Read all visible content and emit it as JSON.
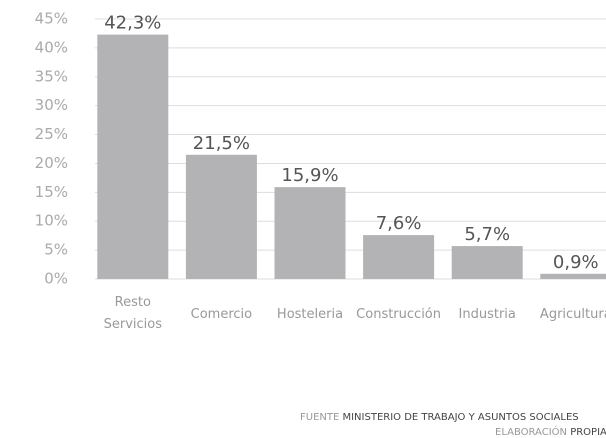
{
  "chart_data": {
    "type": "bar",
    "categories": [
      "Resto Servicios",
      "Comercio",
      "Hosteleria",
      "Construcción",
      "Industria",
      "Agricultura"
    ],
    "values": [
      42.3,
      21.5,
      15.9,
      7.6,
      5.7,
      0.9
    ],
    "value_labels": [
      "42,3%",
      "21,5%",
      "15,9%",
      "7,6%",
      "5,7%",
      "0,9%"
    ],
    "color": "#b3b3b5",
    "ylim": [
      0,
      45
    ],
    "yticks": [
      {
        "value": 0,
        "label": "0%"
      },
      {
        "value": 5,
        "label": "5%"
      },
      {
        "value": 10,
        "label": "10%"
      },
      {
        "value": 15,
        "label": "15%"
      },
      {
        "value": 20,
        "label": "20%"
      },
      {
        "value": 25,
        "label": "25%"
      },
      {
        "value": 30,
        "label": "30%"
      },
      {
        "value": 35,
        "label": "35%"
      },
      {
        "value": 40,
        "label": "40%"
      },
      {
        "value": 45,
        "label": "45%"
      }
    ],
    "grid": true,
    "source_label": "FUENTE",
    "source": "MINISTERIO DE TRABAJO Y ASUNTOS SOCIALES",
    "credit_label": "ELABORACIÓN",
    "credit": "PROPIA"
  }
}
